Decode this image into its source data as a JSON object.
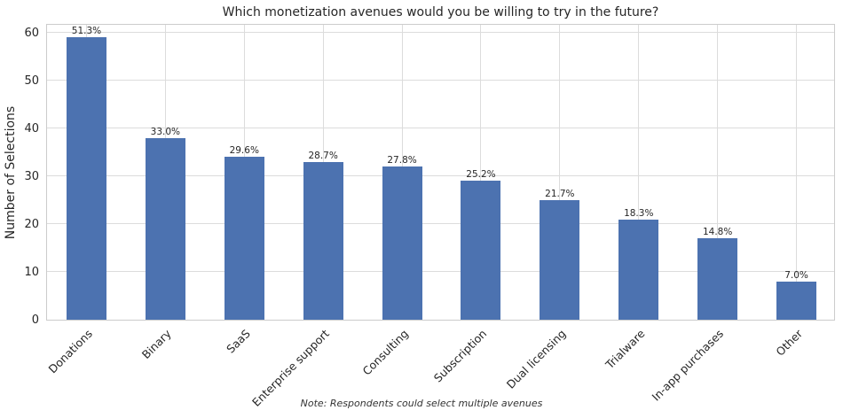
{
  "chart_data": {
    "type": "bar",
    "title": "Which monetization avenues would you be willing to try in the future?",
    "ylabel": "Number of Selections",
    "xlabel": "",
    "categories": [
      "Donations",
      "Binary",
      "SaaS",
      "Enterprise support",
      "Consulting",
      "Subscription",
      "Dual licensing",
      "Trialware",
      "In-app purchases",
      "Other"
    ],
    "values": [
      59,
      38,
      34,
      33,
      32,
      29,
      25,
      21,
      17,
      8
    ],
    "bar_labels": [
      "51.3%",
      "33.0%",
      "29.6%",
      "28.7%",
      "27.8%",
      "25.2%",
      "21.7%",
      "18.3%",
      "14.8%",
      "7.0%"
    ],
    "percentages": [
      51.3,
      33.0,
      29.6,
      28.7,
      27.8,
      25.2,
      21.7,
      18.3,
      14.8,
      7.0
    ],
    "yticks": [
      0,
      10,
      20,
      30,
      40,
      50,
      60
    ],
    "ylim": [
      0,
      62
    ],
    "grid": true,
    "legend_position": "none",
    "bar_color": "#4C72B0",
    "note": "Note: Respondents could select multiple avenues"
  }
}
